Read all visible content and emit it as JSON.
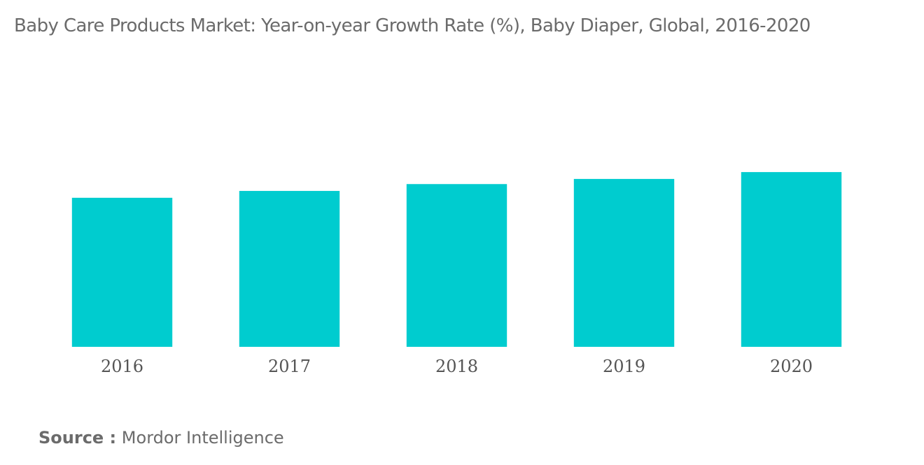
{
  "title": "Baby Care Products Market: Year-on-year Growth Rate (%), Baby Diaper, Global, 2016-2020",
  "source": {
    "label": "Source :",
    "value": "Mordor Intelligence"
  },
  "colors": {
    "bar": "#00cccf",
    "title": "#6b6b6b",
    "tick": "#555555"
  },
  "chart_data": {
    "type": "bar",
    "title": "Baby Care Products Market: Year-on-year Growth Rate (%), Baby Diaper, Global, 2016-2020",
    "categories": [
      "2016",
      "2017",
      "2018",
      "2019",
      "2020"
    ],
    "values": [
      4.35,
      4.55,
      4.75,
      4.9,
      5.1
    ],
    "xlabel": "",
    "ylabel": "",
    "ylim": [
      0,
      9
    ],
    "grid": false,
    "legend": "none"
  }
}
